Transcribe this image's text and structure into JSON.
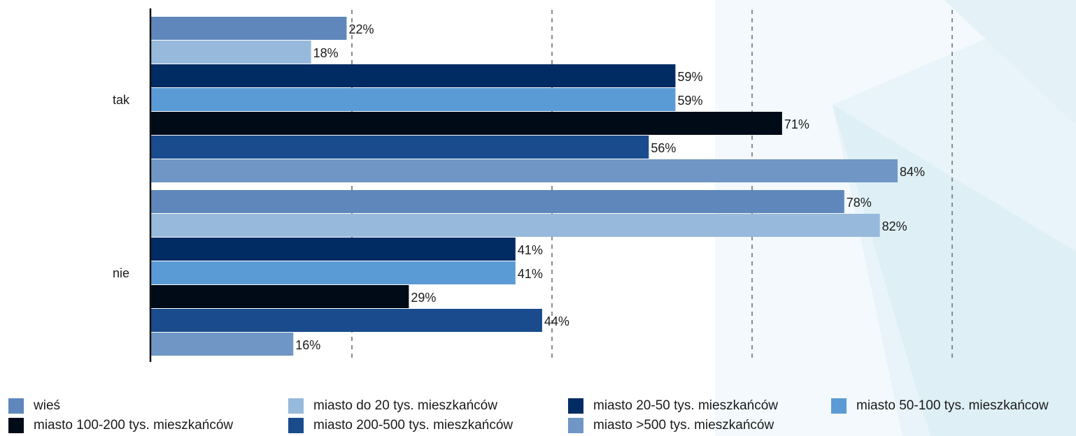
{
  "chart_data": {
    "type": "bar",
    "orientation": "horizontal",
    "title": "",
    "xlabel": "",
    "ylabel": "",
    "categories": [
      "tak",
      "nie"
    ],
    "xlim": [
      0,
      84
    ],
    "grid": "vertical dashed",
    "legend_position": "bottom",
    "series": [
      {
        "name": "wieś",
        "color": "#5f87bb",
        "values": [
          22,
          78
        ],
        "labels": [
          "22%",
          "78%"
        ]
      },
      {
        "name": "miasto do 20 tys. mieszkańców",
        "color": "#97b9dc",
        "values": [
          18,
          82
        ],
        "labels": [
          "18%",
          "82%"
        ]
      },
      {
        "name": "miasto 20-50 tys. mieszkańców",
        "color": "#002b63",
        "values": [
          59,
          41
        ],
        "labels": [
          "59%",
          "41%"
        ]
      },
      {
        "name": "miasto 50-100 tys. mieszkańcow",
        "color": "#5b9bd5",
        "values": [
          59,
          41
        ],
        "labels": [
          "59%",
          "41%"
        ]
      },
      {
        "name": "miasto 100-200 tys. mieszkańców",
        "color": "#000b18",
        "values": [
          71,
          29
        ],
        "labels": [
          "71%",
          "29%"
        ]
      },
      {
        "name": "miasto 200-500 tys. mieszkańców",
        "color": "#1a4c8d",
        "values": [
          56,
          44
        ],
        "labels": [
          "56%",
          "44%"
        ]
      },
      {
        "name": "miasto >500 tys. mieszkańców",
        "color": "#6f96c5",
        "values": [
          84,
          16
        ],
        "labels": [
          "84%",
          "16%"
        ]
      }
    ]
  }
}
